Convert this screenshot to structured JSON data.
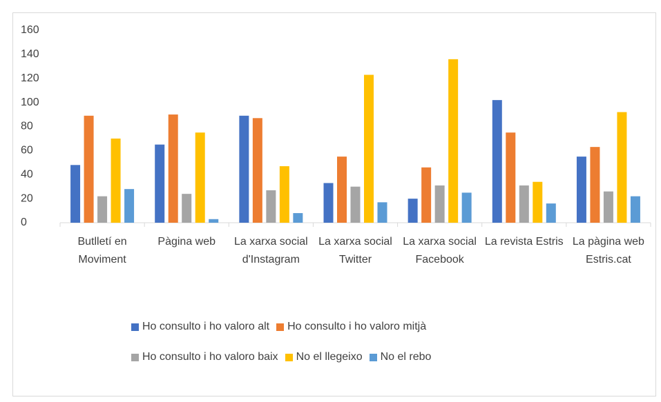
{
  "chart_data": {
    "type": "bar",
    "categories": [
      "Butlletí en Moviment",
      "Pàgina web",
      "La xarxa social d'Instagram",
      "La xarxa social Twitter",
      "La xarxa social Facebook",
      "La revista Estris",
      "La pàgina web Estris.cat"
    ],
    "series": [
      {
        "name": "Ho consulto i ho valoro alt",
        "color": "#4472c4",
        "values": [
          48,
          65,
          89,
          33,
          20,
          102,
          55
        ]
      },
      {
        "name": "Ho consulto i ho valoro mitjà",
        "color": "#ed7d31",
        "values": [
          89,
          90,
          87,
          55,
          46,
          75,
          63
        ]
      },
      {
        "name": "Ho consulto i ho valoro baix",
        "color": "#a5a5a5",
        "values": [
          22,
          24,
          27,
          30,
          31,
          31,
          26
        ]
      },
      {
        "name": "No el llegeixo",
        "color": "#ffc000",
        "values": [
          70,
          75,
          47,
          123,
          136,
          34,
          92
        ]
      },
      {
        "name": "No el rebo",
        "color": "#5b9bd5",
        "values": [
          28,
          3,
          8,
          17,
          25,
          16,
          22
        ]
      }
    ],
    "ylim": [
      0,
      160
    ],
    "yticks": [
      0,
      20,
      40,
      60,
      80,
      100,
      120,
      140,
      160
    ],
    "grid": false,
    "legend": "bottom"
  }
}
